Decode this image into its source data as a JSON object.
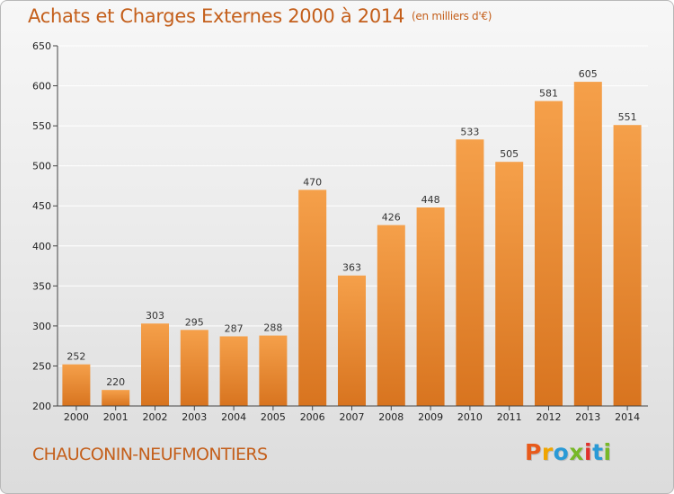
{
  "header": {
    "title": "Achats et Charges Externes 2000 à 2014",
    "unit": "(en milliers d'€)"
  },
  "footer": {
    "place": "CHAUCONIN-NEUFMONTIERS",
    "brand_letters": [
      "P",
      "r",
      "o",
      "x",
      "i",
      "t",
      "i"
    ],
    "brand_colors": [
      "#e85a1b",
      "#f0a500",
      "#2a9ad6",
      "#78b828",
      "#e0312c",
      "#2a9ad6",
      "#78b828"
    ]
  },
  "colors": {
    "bar_top": "#f5a04a",
    "bar_bottom": "#d8741f",
    "axis": "#444444",
    "grid": "#ffffff",
    "title": "#c45f1b"
  },
  "chart_data": {
    "type": "bar",
    "title": "Achats et Charges Externes 2000 à 2014",
    "subtitle": "(en milliers d'€)",
    "xlabel": "",
    "ylabel": "",
    "categories": [
      "2000",
      "2001",
      "2002",
      "2003",
      "2004",
      "2005",
      "2006",
      "2007",
      "2008",
      "2009",
      "2010",
      "2011",
      "2012",
      "2013",
      "2014"
    ],
    "values": [
      252,
      220,
      303,
      295,
      287,
      288,
      470,
      363,
      426,
      448,
      533,
      505,
      581,
      605,
      551
    ],
    "ylim": [
      200,
      650
    ],
    "yticks": [
      200,
      250,
      300,
      350,
      400,
      450,
      500,
      550,
      600,
      650
    ],
    "grid": true,
    "legend": "none"
  }
}
